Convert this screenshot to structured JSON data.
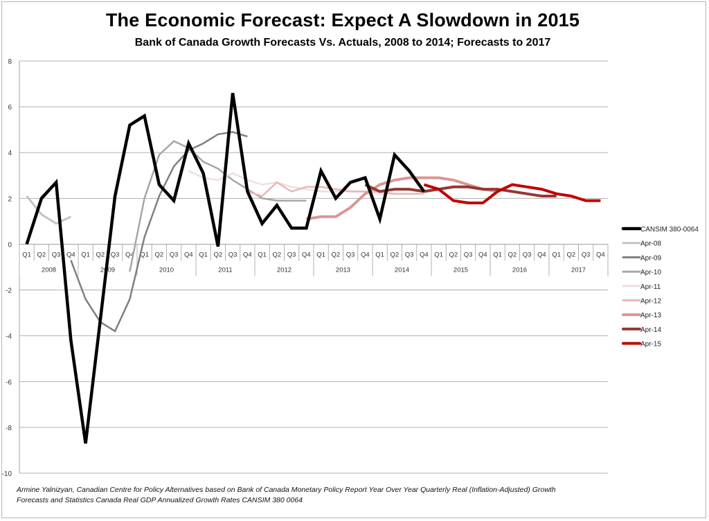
{
  "chart_data": {
    "type": "line",
    "title": "The Economic Forecast: Expect A Slowdown in 2015",
    "subtitle": "Bank of Canada Growth Forecasts Vs. Actuals, 2008 to 2014; Forecasts to 2017",
    "xlabel": "",
    "ylabel": "",
    "ylim": [
      -10,
      8
    ],
    "yticks": [
      8,
      6,
      4,
      2,
      0,
      -2,
      -4,
      -6,
      -8,
      -10
    ],
    "grid": true,
    "legend_position": "right",
    "years": [
      "2008",
      "2009",
      "2010",
      "2011",
      "2012",
      "2013",
      "2014",
      "2015",
      "2016",
      "2017"
    ],
    "quarters": [
      "Q1",
      "Q2",
      "Q3",
      "Q4"
    ],
    "x_start": "2008 Q1",
    "series": [
      {
        "name": "CANSIM 380-0064",
        "color": "#000000",
        "width": 4.5,
        "start": 0,
        "values": [
          0.0,
          2.0,
          2.7,
          -4.2,
          -8.7,
          -3.3,
          2.1,
          5.2,
          5.6,
          2.6,
          1.9,
          4.4,
          3.1,
          -0.1,
          6.6,
          2.3,
          0.9,
          1.7,
          0.7,
          0.7,
          3.2,
          2.0,
          2.7,
          2.9,
          1.1,
          3.9,
          3.2,
          2.3
        ]
      },
      {
        "name": "Apr-08",
        "color": "#c4c4c4",
        "width": 3,
        "start": 0,
        "values": [
          2.1,
          1.3,
          0.9,
          1.2
        ]
      },
      {
        "name": "Apr-09",
        "color": "#7f7f7f",
        "width": 2.5,
        "start": 3,
        "values": [
          -0.7,
          -2.4,
          -3.4,
          -3.8,
          -2.4,
          0.3,
          2.1,
          3.4,
          4.1,
          4.4,
          4.8,
          4.9,
          4.7
        ]
      },
      {
        "name": "Apr-10",
        "color": "#a6a6a6",
        "width": 2.5,
        "start": 7,
        "values": [
          -1.2,
          2.0,
          3.9,
          4.5,
          4.2,
          3.6,
          3.3,
          2.8,
          2.4,
          2.0,
          1.9,
          1.9,
          1.9
        ]
      },
      {
        "name": "Apr-11",
        "color": "#f0dede",
        "width": 2.5,
        "start": 11,
        "values": [
          3.2,
          2.9,
          2.8,
          3.1,
          2.8,
          2.6,
          2.7,
          2.5,
          2.4,
          2.3,
          2.3,
          2.3,
          2.3,
          2.2,
          2.2,
          2.2
        ]
      },
      {
        "name": "Apr-12",
        "color": "#e6b8b7",
        "width": 2.5,
        "start": 15,
        "values": [
          2.3,
          2.1,
          2.7,
          2.3,
          2.5,
          2.5,
          2.4,
          2.3,
          2.3,
          2.3,
          2.2,
          2.2,
          2.2
        ]
      },
      {
        "name": "Apr-13",
        "color": "#da9694",
        "width": 4,
        "start": 19,
        "values": [
          1.1,
          1.2,
          1.2,
          1.6,
          2.2,
          2.6,
          2.8,
          2.9,
          2.9,
          2.9,
          2.8,
          2.6,
          2.4,
          2.3
        ]
      },
      {
        "name": "Apr-14",
        "color": "#953735",
        "width": 4,
        "start": 23,
        "values": [
          2.6,
          2.3,
          2.4,
          2.4,
          2.3,
          2.4,
          2.5,
          2.5,
          2.4,
          2.4,
          2.3,
          2.2,
          2.1,
          2.1
        ]
      },
      {
        "name": "Apr-15",
        "color": "#c00000",
        "width": 4,
        "start": 27,
        "values": [
          2.6,
          2.4,
          1.9,
          1.8,
          1.8,
          2.3,
          2.6,
          2.5,
          2.4,
          2.2,
          2.1,
          1.9,
          1.9
        ]
      }
    ]
  },
  "footer": {
    "source_line1": "Armine Yalnizyan, Canadian Centre for Policy Alternatives based on Bank of Canada Monetary Policy Report  Year Over Year Quarterly  Real  (Inflation-Adjusted) Growth",
    "source_line2": "Forecasts and Statistics Canada  Real GDP Annualized Growth Rates CANSIM 380 0064"
  }
}
